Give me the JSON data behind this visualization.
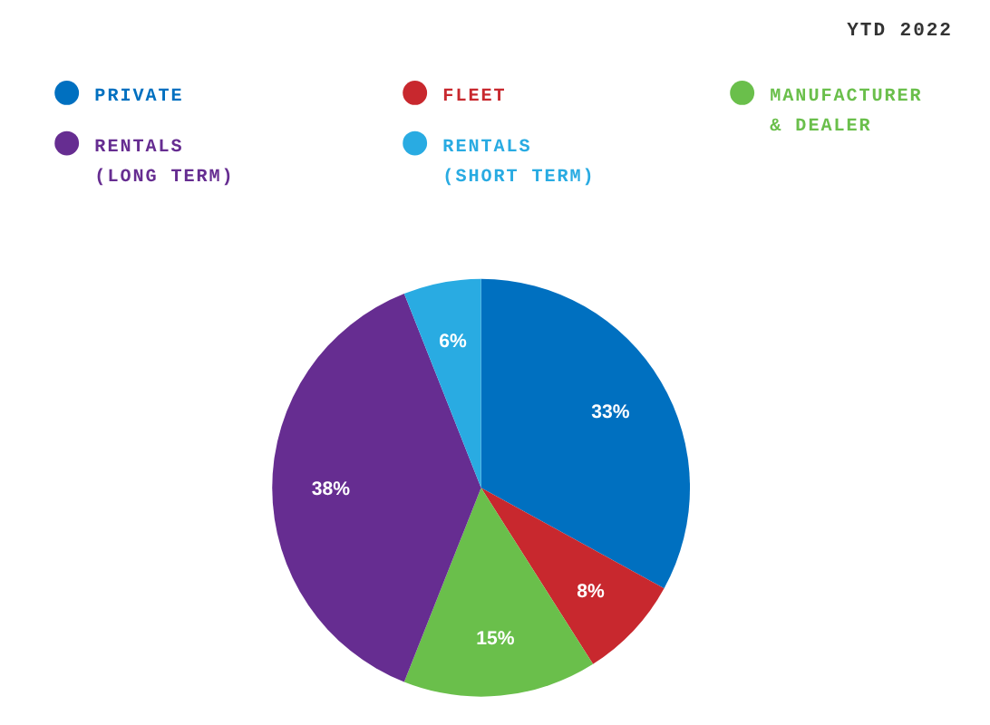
{
  "chart_data": {
    "type": "pie",
    "title": "YTD 2022",
    "categories": [
      "PRIVATE",
      "FLEET",
      "MANUFACTURER & DEALER",
      "RENTALS (LONG TERM)",
      "RENTALS (SHORT TERM)"
    ],
    "values": [
      33,
      8,
      15,
      38,
      6
    ],
    "colors": [
      "#0070c0",
      "#c8282e",
      "#6abf4b",
      "#662d91",
      "#29abe2"
    ],
    "value_labels": [
      "33%",
      "8%",
      "15%",
      "38%",
      "6%"
    ],
    "legend": "top"
  }
}
